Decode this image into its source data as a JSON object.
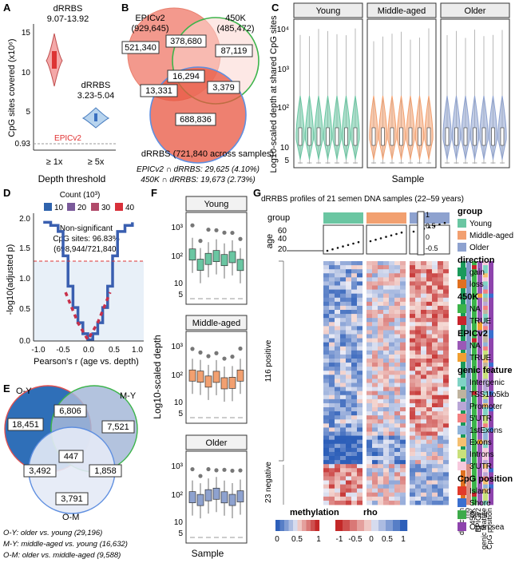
{
  "panel_labels": [
    "A",
    "B",
    "C",
    "D",
    "E",
    "F",
    "G"
  ],
  "colors": {
    "young": "#6ac6a2",
    "middle": "#f2a070",
    "older": "#8ea2cf",
    "epic_fill": "#f08070",
    "k450_edge": "#3cb44a",
    "drrbs_edge": "#5f8fe0",
    "red": "#c8242c",
    "blue": "#2f63ad",
    "gray": "#999999"
  },
  "A": {
    "title1": "dRRBS",
    "range1": "9.07-13.92",
    "title2": "dRRBS",
    "range2": "3.23-5.04",
    "epic": "EPICv2",
    "ylabel": "CpG sites covered (x10⁶)",
    "xlabel": "Depth threshold",
    "yticks": [
      "15",
      "10",
      "5",
      "0.93"
    ],
    "xticks": [
      "≥ 1x",
      "≥ 5x"
    ],
    "chart_data": {
      "type": "violin",
      "categories": [
        "≥ 1x",
        "≥ 5x"
      ],
      "ranges": [
        [
          9.07,
          13.92
        ],
        [
          3.23,
          5.04
        ]
      ],
      "reference_line": 0.93,
      "ylim": [
        0.93,
        17
      ]
    }
  },
  "B": {
    "epic_label": "EPICv2",
    "epic_count": "(929,645)",
    "k450_label": "450K",
    "k450_count": "(485,472)",
    "drrbs_label": "dRRBS (721,840 across samples)",
    "regions": [
      "521,340",
      "378,680",
      "87,119",
      "16,294",
      "13,331",
      "3,379",
      "688,836"
    ],
    "note1": "EPICv2 ∩ dRRBS: 29,625 (4.10%)",
    "note2": "450K ∩ dRRBS: 19,673 (2.73%)"
  },
  "C": {
    "facets": [
      "Young",
      "Middle-aged",
      "Older"
    ],
    "ylabel": "Log10-scaled depth at shared CpG sites",
    "xlabel": "Sample",
    "yticks": [
      "10⁴",
      "10³",
      "10²",
      "10",
      "5"
    ],
    "chart_data": {
      "type": "violin",
      "groups": [
        "Young",
        "Middle-aged",
        "Older"
      ],
      "samples_per_group": [
        7,
        7,
        7
      ],
      "y_scale": "log10",
      "median_depth_approx": [
        20,
        20,
        20
      ]
    }
  },
  "D": {
    "legend_title": "Count (10³)",
    "legend_items": [
      "10",
      "20",
      "30",
      "40"
    ],
    "annot1": "Non-significant",
    "annot2": "CpG sites: 96.83%",
    "annot3": "(698,944/721,840)",
    "ylabel": "-log10(adjusted p)",
    "xlabel": "Pearson's r (age vs. depth)",
    "yticks": [
      "2.0",
      "1.5",
      "1.0",
      "0.5",
      "0.0"
    ],
    "xticks": [
      "-1.0",
      "-0.5",
      "0.0",
      "0.5",
      "1.0"
    ],
    "chart_data": {
      "type": "line",
      "x": [
        -0.9,
        -0.75,
        -0.6,
        -0.5,
        -0.4,
        -0.3,
        -0.2,
        -0.1,
        0,
        0.1,
        0.2,
        0.3,
        0.4,
        0.5,
        0.6,
        0.75,
        0.9
      ],
      "y": [
        1.95,
        1.9,
        1.8,
        1.4,
        0.9,
        0.55,
        0.3,
        0.12,
        0.02,
        0.12,
        0.3,
        0.55,
        0.9,
        1.4,
        1.8,
        1.9,
        1.95
      ],
      "threshold": 1.3,
      "xlim": [
        -1,
        1
      ],
      "ylim": [
        0,
        2.1
      ]
    }
  },
  "E": {
    "labels": [
      "O-Y",
      "M-Y",
      "O-M"
    ],
    "regions": [
      "18,451",
      "6,806",
      "7,521",
      "447",
      "3,492",
      "1,858",
      "3,791"
    ],
    "notes": [
      "O-Y: older vs. young (29,196)",
      "M-Y: middle-aged vs. young (16,632)",
      "O-M: older vs. middle-aged (9,588)"
    ]
  },
  "F": {
    "facets": [
      "Young",
      "Middle-aged",
      "Older"
    ],
    "ylabel": "Log10-scaled depth",
    "xlabel": "Sample",
    "yticks": [
      "10³",
      "10²",
      "10",
      "5"
    ],
    "chart_data": {
      "type": "box",
      "groups": [
        "Young",
        "Middle-aged",
        "Older"
      ],
      "samples_per_group": 7,
      "y_scale": "log10"
    }
  },
  "G": {
    "title": "dRRBS profiles of 21 semen DNA samples (22–59 years)",
    "group_label": "group",
    "age_label": "age",
    "age_ticks": [
      "60",
      "40",
      "20"
    ],
    "rho_ticks": [
      "1",
      "0.5",
      "0",
      "-0.5"
    ],
    "row_labels": [
      "116 positive",
      "23 negative"
    ],
    "col_annotations": [
      "direction",
      "rho",
      "450K",
      "EPICv2",
      "genic feature",
      "CpG position"
    ],
    "legends": [
      {
        "title": "group",
        "items": [
          [
            "Young",
            "#6ac6a2"
          ],
          [
            "Middle-aged",
            "#f2a070"
          ],
          [
            "Older",
            "#8ea2cf"
          ]
        ]
      },
      {
        "title": "direction",
        "items": [
          [
            "gain",
            "#1a9a5a"
          ],
          [
            "loss",
            "#e07020"
          ]
        ]
      },
      {
        "title": "450K",
        "items": [
          [
            "NA",
            "#3cb44a"
          ],
          [
            "TRUE",
            "#c8242c"
          ]
        ]
      },
      {
        "title": "EPICv2",
        "items": [
          [
            "NA",
            "#9b59b6"
          ],
          [
            "TRUE",
            "#f0a030"
          ]
        ]
      },
      {
        "title": "genic feature",
        "items": [
          [
            "Intergenic",
            "#7fd3c4"
          ],
          [
            "TSS1to5kb",
            "#bfb39f"
          ],
          [
            "Promoter",
            "#b9a6d6"
          ],
          [
            "5'UTR",
            "#f28080"
          ],
          [
            "1stExons",
            "#8fb3d9"
          ],
          [
            "Exons",
            "#f5c070"
          ],
          [
            "Introns",
            "#c9e07a"
          ],
          [
            "3'UTR",
            "#f7c9dd"
          ]
        ]
      },
      {
        "title": "CpG position",
        "items": [
          [
            "Island",
            "#e23a2a"
          ],
          [
            "Shore",
            "#3a6fcf"
          ],
          [
            "Shelf",
            "#3caa4a"
          ],
          [
            "Open sea",
            "#8e44ad"
          ]
        ]
      }
    ],
    "meth_title": "methylation",
    "meth_ticks": [
      "0",
      "0.5",
      "1"
    ],
    "rho_title": "rho",
    "rho_scale_ticks": [
      "-1",
      "-0.5",
      "0",
      "0.5",
      "1"
    ]
  }
}
